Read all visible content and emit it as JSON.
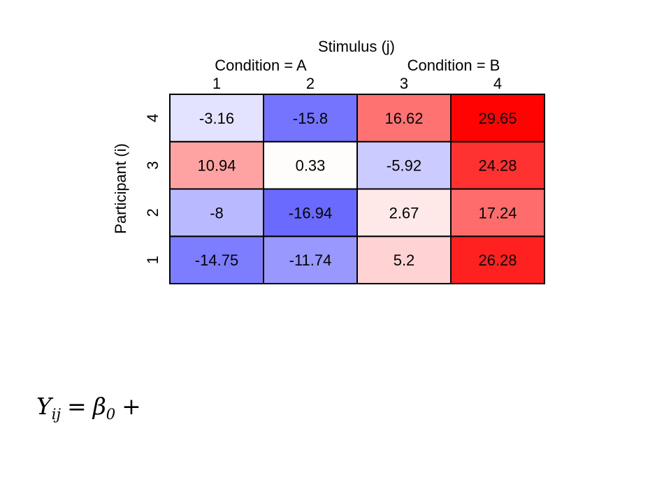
{
  "chart_data": {
    "type": "heatmap",
    "title": "Stimulus (j)",
    "ylabel": "Participant (i)",
    "condition_groups": [
      {
        "label": "Condition = A",
        "columns": [
          "1",
          "2"
        ]
      },
      {
        "label": "Condition = B",
        "columns": [
          "3",
          "4"
        ]
      }
    ],
    "x": [
      "1",
      "2",
      "3",
      "4"
    ],
    "y": [
      "1",
      "2",
      "3",
      "4"
    ],
    "values": [
      [
        -14.75,
        -11.74,
        5.2,
        26.28
      ],
      [
        -8,
        -16.94,
        2.67,
        17.24
      ],
      [
        10.94,
        0.33,
        -5.92,
        24.28
      ],
      [
        -3.16,
        -15.8,
        16.62,
        29.65
      ]
    ],
    "value_labels": [
      [
        "-14.75",
        "-11.74",
        "5.2",
        "26.28"
      ],
      [
        "-8",
        "-16.94",
        "2.67",
        "17.24"
      ],
      [
        "10.94",
        "0.33",
        "-5.92",
        "24.28"
      ],
      [
        "-3.16",
        "-15.8",
        "16.62",
        "29.65"
      ]
    ],
    "colors": {
      "negative": "#4646ff",
      "zero": "#ffffff",
      "positive": "#ff0000"
    },
    "color_limits": [
      -21,
      30
    ]
  },
  "equation": {
    "response": "Y",
    "response_sub": "ij",
    "equals": "=",
    "intercept": "β",
    "intercept_sub": "0",
    "plus": "+"
  }
}
